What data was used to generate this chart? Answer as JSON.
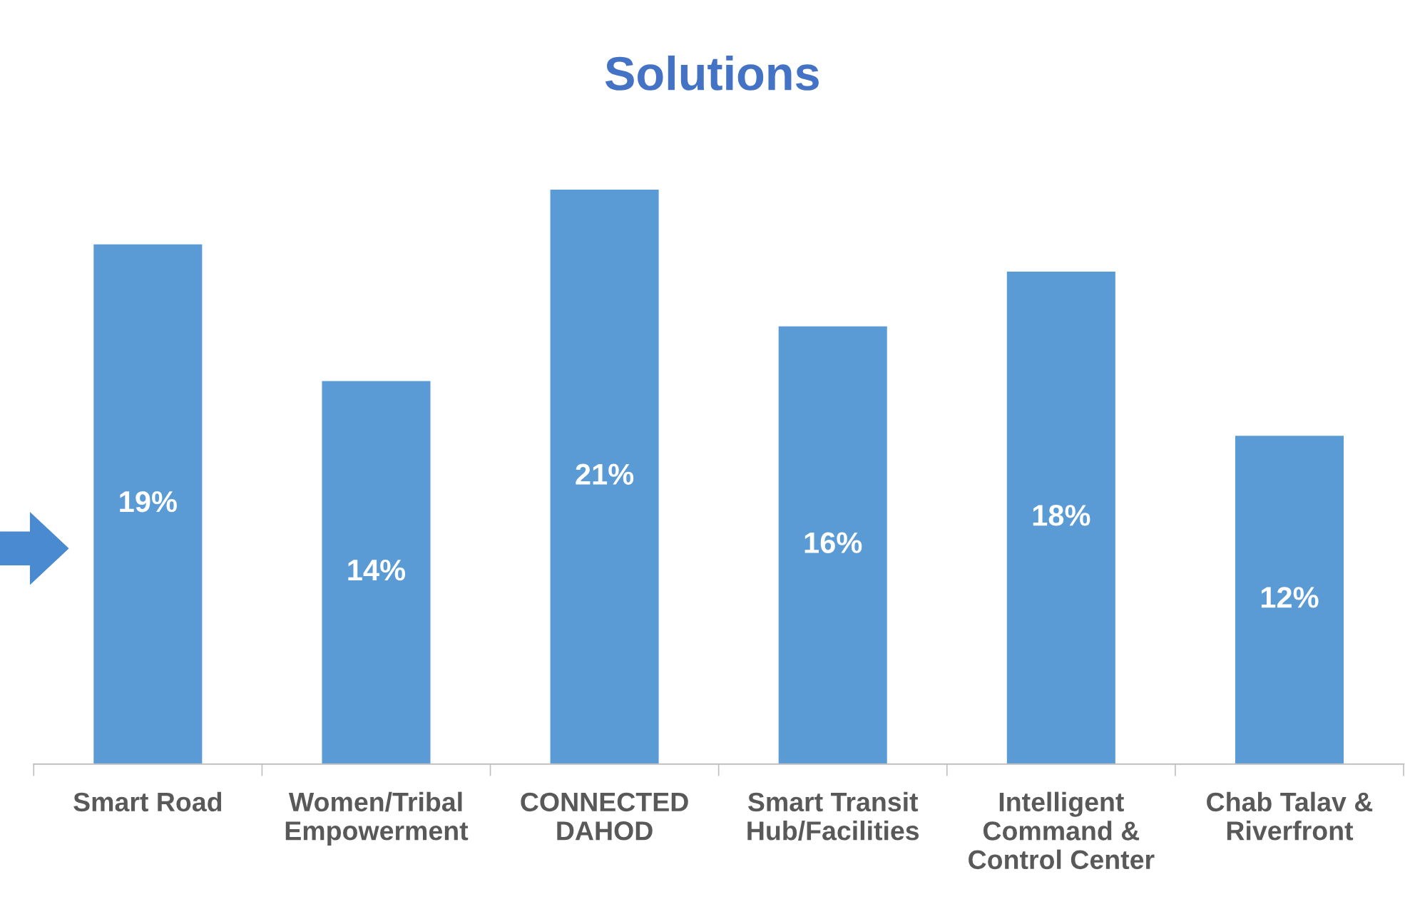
{
  "chart_data": {
    "type": "bar",
    "title": "Solutions",
    "categories": [
      "Smart Road",
      "Women/Tribal Empowerment",
      "CONNECTED DAHOD",
      "Smart Transit Hub/Facilities",
      "Intelligent Command & Control Center",
      "Chab Talav & Riverfront"
    ],
    "values": [
      19,
      14,
      21,
      16,
      18,
      12
    ],
    "value_labels": [
      "19%",
      "14%",
      "21%",
      "16%",
      "18%",
      "12%"
    ],
    "color": "#5b9bd5",
    "grid": false,
    "legend": false
  }
}
